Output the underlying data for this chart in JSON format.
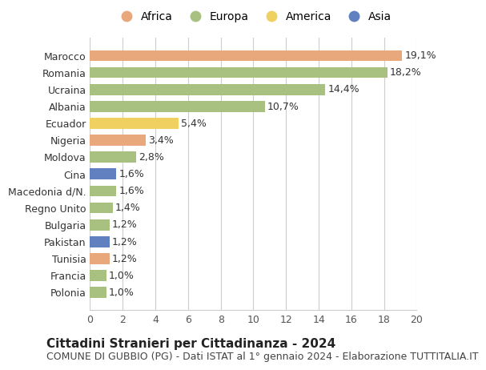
{
  "countries": [
    "Marocco",
    "Romania",
    "Ucraina",
    "Albania",
    "Ecuador",
    "Nigeria",
    "Moldova",
    "Cina",
    "Macedonia d/N.",
    "Regno Unito",
    "Bulgaria",
    "Pakistan",
    "Tunisia",
    "Francia",
    "Polonia"
  ],
  "values": [
    19.1,
    18.2,
    14.4,
    10.7,
    5.4,
    3.4,
    2.8,
    1.6,
    1.6,
    1.4,
    1.2,
    1.2,
    1.2,
    1.0,
    1.0
  ],
  "labels": [
    "19,1%",
    "18,2%",
    "14,4%",
    "10,7%",
    "5,4%",
    "3,4%",
    "2,8%",
    "1,6%",
    "1,6%",
    "1,4%",
    "1,2%",
    "1,2%",
    "1,2%",
    "1,0%",
    "1,0%"
  ],
  "continents": [
    "Africa",
    "Europa",
    "Europa",
    "Europa",
    "America",
    "Africa",
    "Europa",
    "Asia",
    "Europa",
    "Europa",
    "Europa",
    "Asia",
    "Africa",
    "Europa",
    "Europa"
  ],
  "colors": {
    "Africa": "#E8A87C",
    "Europa": "#A8C080",
    "America": "#F0D060",
    "Asia": "#6080C0"
  },
  "legend_order": [
    "Africa",
    "Europa",
    "America",
    "Asia"
  ],
  "xlim": [
    0,
    20
  ],
  "xticks": [
    0,
    2,
    4,
    6,
    8,
    10,
    12,
    14,
    16,
    18,
    20
  ],
  "title": "Cittadini Stranieri per Cittadinanza - 2024",
  "subtitle": "COMUNE DI GUBBIO (PG) - Dati ISTAT al 1° gennaio 2024 - Elaborazione TUTTITALIA.IT",
  "background_color": "#ffffff",
  "grid_color": "#cccccc",
  "bar_height": 0.65,
  "title_fontsize": 11,
  "subtitle_fontsize": 9,
  "label_fontsize": 9,
  "tick_fontsize": 9,
  "legend_fontsize": 10
}
